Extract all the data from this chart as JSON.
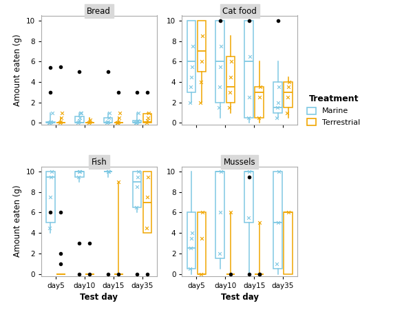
{
  "panels": [
    "Bread",
    "Cat food",
    "Fish",
    "Mussels"
  ],
  "days": [
    "day5",
    "day10",
    "day15",
    "day35"
  ],
  "marine_color": "#7EC8E3",
  "terrestrial_color": "#F0A500",
  "marine_light": "#C8E8F5",
  "terrestrial_light": "#FAD580",
  "ylim": [
    -0.2,
    10.5
  ],
  "yticks": [
    0,
    2,
    4,
    6,
    8,
    10
  ],
  "ylabel": "Amount eaten (g)",
  "xlabel": "Test day",
  "panel_bg": "#D9D9D9",
  "box_data": {
    "Bread": {
      "Marine": {
        "day5": {
          "q1": 0.0,
          "med": 0.0,
          "q3": 0.1,
          "whislo": 0.0,
          "whishi": 1.0,
          "pts": [
            0.0,
            0.0,
            0.1,
            0.1,
            1.0
          ],
          "out": [
            5.4,
            3.0
          ]
        },
        "day10": {
          "q1": 0.0,
          "med": 0.05,
          "q3": 0.6,
          "whislo": 0.0,
          "whishi": 1.0,
          "pts": [
            0.0,
            0.1,
            0.2,
            0.5,
            1.0,
            1.0
          ],
          "out": [
            5.0
          ]
        },
        "day15": {
          "q1": 0.0,
          "med": 0.05,
          "q3": 0.5,
          "whislo": 0.0,
          "whishi": 1.0,
          "pts": [
            0.0,
            0.1,
            0.1,
            0.5,
            1.0
          ],
          "out": [
            5.0
          ]
        },
        "day35": {
          "q1": 0.0,
          "med": 0.05,
          "q3": 0.2,
          "whislo": 0.0,
          "whishi": 1.0,
          "pts": [
            0.0,
            0.0,
            0.1,
            0.2,
            1.0
          ],
          "out": [
            3.0
          ]
        }
      },
      "Terrestrial": {
        "day5": {
          "q1": 0.0,
          "med": 0.0,
          "q3": 0.05,
          "whislo": 0.0,
          "whishi": 0.5,
          "pts": [
            0.0,
            0.1,
            0.5,
            1.0
          ],
          "out": [
            5.5
          ]
        },
        "day10": {
          "q1": 0.0,
          "med": 0.0,
          "q3": 0.05,
          "whislo": 0.0,
          "whishi": 0.5,
          "pts": [
            0.0,
            0.1,
            0.3
          ],
          "out": []
        },
        "day15": {
          "q1": 0.0,
          "med": 0.0,
          "q3": 0.05,
          "whislo": 0.0,
          "whishi": 0.5,
          "pts": [
            0.0,
            0.0,
            0.1,
            0.5,
            1.0
          ],
          "out": [
            3.0
          ]
        },
        "day35": {
          "q1": 0.0,
          "med": 0.1,
          "q3": 0.9,
          "whislo": 0.0,
          "whishi": 1.0,
          "pts": [
            0.0,
            0.2,
            0.5,
            1.0
          ],
          "out": [
            3.0
          ]
        }
      }
    },
    "Cat food": {
      "Marine": {
        "day5": {
          "q1": 3.0,
          "med": 6.0,
          "q3": 10.0,
          "whislo": 2.0,
          "whishi": 10.0,
          "pts": [
            2.0,
            3.5,
            4.5,
            5.5,
            7.5
          ],
          "out": []
        },
        "day10": {
          "q1": 2.0,
          "med": 6.0,
          "q3": 10.0,
          "whislo": 0.5,
          "whishi": 10.0,
          "pts": [
            1.5,
            3.5,
            5.5,
            7.5
          ],
          "out": [
            10.0
          ]
        },
        "day15": {
          "q1": 0.5,
          "med": 6.0,
          "q3": 10.0,
          "whislo": 0.0,
          "whishi": 10.0,
          "pts": [
            0.5,
            2.5,
            6.5
          ],
          "out": [
            10.0
          ]
        },
        "day35": {
          "q1": 1.0,
          "med": 1.5,
          "q3": 4.0,
          "whislo": 0.5,
          "whishi": 6.0,
          "pts": [
            0.5,
            1.5,
            2.0,
            3.5
          ],
          "out": [
            10.0
          ]
        }
      },
      "Terrestrial": {
        "day5": {
          "q1": 5.0,
          "med": 7.0,
          "q3": 10.0,
          "whislo": 2.0,
          "whishi": 10.0,
          "pts": [
            2.0,
            4.0,
            6.0,
            8.5
          ],
          "out": []
        },
        "day10": {
          "q1": 2.0,
          "med": 3.5,
          "q3": 6.5,
          "whislo": 1.0,
          "whishi": 8.5,
          "pts": [
            1.5,
            3.0,
            4.5,
            6.0
          ],
          "out": []
        },
        "day15": {
          "q1": 0.5,
          "med": 3.0,
          "q3": 3.5,
          "whislo": 0.0,
          "whishi": 6.0,
          "pts": [
            0.5,
            2.5,
            3.5
          ],
          "out": []
        },
        "day35": {
          "q1": 1.5,
          "med": 3.0,
          "q3": 4.0,
          "whislo": 0.5,
          "whishi": 4.5,
          "pts": [
            1.0,
            2.5,
            3.5,
            4.0
          ],
          "out": []
        }
      }
    },
    "Fish": {
      "Marine": {
        "day5": {
          "q1": 5.0,
          "med": 9.5,
          "q3": 10.0,
          "whislo": 4.0,
          "whishi": 10.0,
          "pts": [
            4.5,
            7.5,
            9.5,
            10.0
          ],
          "out": [
            6.0
          ]
        },
        "day10": {
          "q1": 9.5,
          "med": 10.0,
          "q3": 10.0,
          "whislo": 9.0,
          "whishi": 10.0,
          "pts": [
            9.5,
            10.0,
            10.0
          ],
          "out": [
            3.0,
            0.0
          ]
        },
        "day15": {
          "q1": 10.0,
          "med": 10.0,
          "q3": 10.0,
          "whislo": 9.5,
          "whishi": 10.0,
          "pts": [
            10.0,
            10.0
          ],
          "out": [
            0.0
          ]
        },
        "day35": {
          "q1": 6.5,
          "med": 9.0,
          "q3": 10.0,
          "whislo": 6.0,
          "whishi": 10.0,
          "pts": [
            6.5,
            8.5,
            9.5,
            10.0
          ],
          "out": [
            0.0
          ]
        }
      },
      "Terrestrial": {
        "day5": {
          "q1": 0.0,
          "med": 0.0,
          "q3": 0.0,
          "whislo": 0.0,
          "whishi": 0.0,
          "pts": [],
          "out": [
            1.0,
            2.0,
            6.0
          ]
        },
        "day10": {
          "q1": 0.0,
          "med": 0.0,
          "q3": 0.0,
          "whislo": 0.0,
          "whishi": 0.0,
          "pts": [],
          "out": [
            3.0,
            0.0
          ]
        },
        "day15": {
          "q1": 0.0,
          "med": 0.0,
          "q3": 0.0,
          "whislo": 0.0,
          "whishi": 9.0,
          "pts": [
            9.0
          ],
          "out": [
            0.0
          ]
        },
        "day35": {
          "q1": 4.0,
          "med": 7.0,
          "q3": 10.0,
          "whislo": 4.0,
          "whishi": 10.0,
          "pts": [
            4.5,
            7.5,
            9.5
          ],
          "out": [
            0.0
          ]
        }
      }
    },
    "Mussels": {
      "Marine": {
        "day5": {
          "q1": 0.5,
          "med": 2.5,
          "q3": 6.0,
          "whislo": 0.0,
          "whishi": 10.0,
          "pts": [
            0.5,
            2.5,
            3.5,
            4.0
          ],
          "out": []
        },
        "day10": {
          "q1": 1.5,
          "med": 10.0,
          "q3": 10.0,
          "whislo": 0.5,
          "whishi": 10.0,
          "pts": [
            2.0,
            6.0,
            10.0
          ],
          "out": []
        },
        "day15": {
          "q1": 5.0,
          "med": 10.0,
          "q3": 10.0,
          "whislo": 0.0,
          "whishi": 10.0,
          "pts": [
            5.5,
            10.0
          ],
          "out": [
            0.0,
            9.5
          ]
        },
        "day35": {
          "q1": 0.5,
          "med": 5.0,
          "q3": 10.0,
          "whislo": 0.0,
          "whishi": 10.0,
          "pts": [
            1.0,
            5.0,
            10.0
          ],
          "out": []
        }
      },
      "Terrestrial": {
        "day5": {
          "q1": 0.0,
          "med": 0.0,
          "q3": 6.0,
          "whislo": 0.0,
          "whishi": 6.0,
          "pts": [
            0.0,
            3.5,
            6.0
          ],
          "out": []
        },
        "day10": {
          "q1": 0.0,
          "med": 0.0,
          "q3": 0.0,
          "whislo": 0.0,
          "whishi": 6.0,
          "pts": [
            6.0
          ],
          "out": [
            0.0
          ]
        },
        "day15": {
          "q1": 0.0,
          "med": 0.0,
          "q3": 0.0,
          "whislo": 0.0,
          "whishi": 5.0,
          "pts": [
            5.0
          ],
          "out": [
            0.0,
            0.0
          ]
        },
        "day35": {
          "q1": 0.0,
          "med": 6.0,
          "q3": 6.0,
          "whislo": 0.0,
          "whishi": 6.0,
          "pts": [
            6.0
          ],
          "out": []
        }
      }
    }
  }
}
